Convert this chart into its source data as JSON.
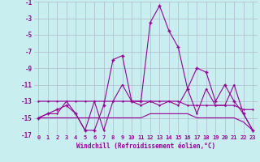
{
  "background_color": "#c8eef0",
  "grid_color": "#b0b8cc",
  "line_color": "#990099",
  "xlabel": "Windchill (Refroidissement éolien,°C)",
  "xlim": [
    -0.5,
    23.5
  ],
  "ylim": [
    -17,
    -1
  ],
  "xticks": [
    0,
    1,
    2,
    3,
    4,
    5,
    6,
    7,
    8,
    9,
    10,
    11,
    12,
    13,
    14,
    15,
    16,
    17,
    18,
    19,
    20,
    21,
    22,
    23
  ],
  "yticks": [
    -1,
    -3,
    -5,
    -7,
    -9,
    -11,
    -13,
    -15,
    -17
  ],
  "series_main": [
    -15.0,
    -14.5,
    -14.0,
    -13.5,
    -14.5,
    -16.5,
    -16.5,
    -13.5,
    -8.0,
    -7.5,
    -13.0,
    -13.0,
    -3.5,
    -1.5,
    -4.5,
    -6.5,
    -11.5,
    -9.0,
    -9.5,
    -13.0,
    -11.0,
    -13.0,
    -14.5,
    -16.5
  ],
  "series_flat1": [
    -13.0,
    -13.0,
    -13.0,
    -13.0,
    -13.0,
    -13.0,
    -13.0,
    -13.0,
    -13.0,
    -13.0,
    -13.0,
    -13.0,
    -13.0,
    -13.0,
    -13.0,
    -13.0,
    -13.5,
    -13.5,
    -13.5,
    -13.5,
    -13.5,
    -13.5,
    -14.0,
    -14.0
  ],
  "series_flat2": [
    -15.0,
    -15.0,
    -15.0,
    -15.0,
    -15.0,
    -15.0,
    -15.0,
    -15.0,
    -15.0,
    -15.0,
    -15.0,
    -15.0,
    -14.5,
    -14.5,
    -14.5,
    -14.5,
    -14.5,
    -15.0,
    -15.0,
    -15.0,
    -15.0,
    -15.0,
    -15.5,
    -16.5
  ],
  "series_jagged": [
    -15.0,
    -14.5,
    -14.5,
    -13.0,
    -14.5,
    -16.5,
    -13.0,
    -16.5,
    -13.0,
    -11.0,
    -13.0,
    -13.5,
    -13.0,
    -13.5,
    -13.0,
    -13.5,
    -11.5,
    -14.5,
    -11.5,
    -13.5,
    -13.5,
    -11.0,
    -14.5,
    -16.5
  ]
}
